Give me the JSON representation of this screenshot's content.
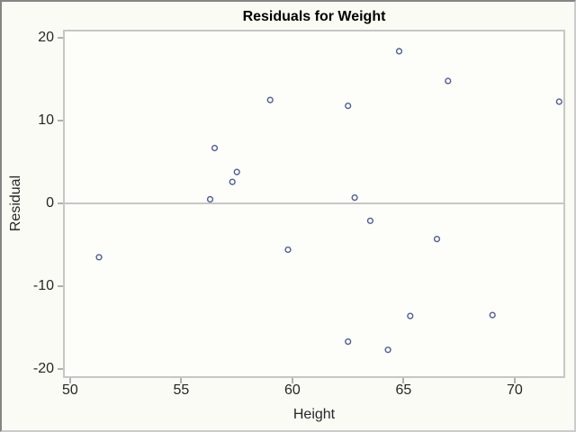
{
  "chart_data": {
    "type": "scatter",
    "title": "Residuals for Weight",
    "xlabel": "Height",
    "ylabel": "Residual",
    "x_ticks": [
      50,
      55,
      60,
      65,
      70
    ],
    "y_ticks": [
      20,
      10,
      0,
      -10,
      -20
    ],
    "xlim": [
      49.68,
      72.27
    ],
    "ylim": [
      -21.1,
      21.0
    ],
    "grid": false,
    "reference_line_y": 0,
    "marker": "open-circle",
    "points": [
      {
        "x": 51.3,
        "y": -6.5
      },
      {
        "x": 56.3,
        "y": 0.5
      },
      {
        "x": 56.5,
        "y": 6.7
      },
      {
        "x": 57.3,
        "y": 2.6
      },
      {
        "x": 57.5,
        "y": 3.8
      },
      {
        "x": 59.0,
        "y": 12.5
      },
      {
        "x": 59.8,
        "y": -5.6
      },
      {
        "x": 62.5,
        "y": 11.8
      },
      {
        "x": 62.5,
        "y": -16.7
      },
      {
        "x": 62.8,
        "y": 0.7
      },
      {
        "x": 63.5,
        "y": -2.1
      },
      {
        "x": 64.3,
        "y": -17.7
      },
      {
        "x": 64.8,
        "y": 18.4
      },
      {
        "x": 65.3,
        "y": -13.6
      },
      {
        "x": 66.5,
        "y": -4.3
      },
      {
        "x": 67.0,
        "y": 14.8
      },
      {
        "x": 69.0,
        "y": -13.5
      },
      {
        "x": 72.0,
        "y": 12.3
      }
    ]
  },
  "figure": {
    "colors": {
      "marker": "#4f5d94",
      "plot_frame": "#c6c6c6",
      "zero_line": "#b4b4b4",
      "tick_mark": "#b0b0b0",
      "text": "#262626",
      "background": "#fbfbf5",
      "wall": "#fdfdf9",
      "outer_border_dark": "#858585",
      "outer_border_light": "#cbcbcb"
    }
  }
}
